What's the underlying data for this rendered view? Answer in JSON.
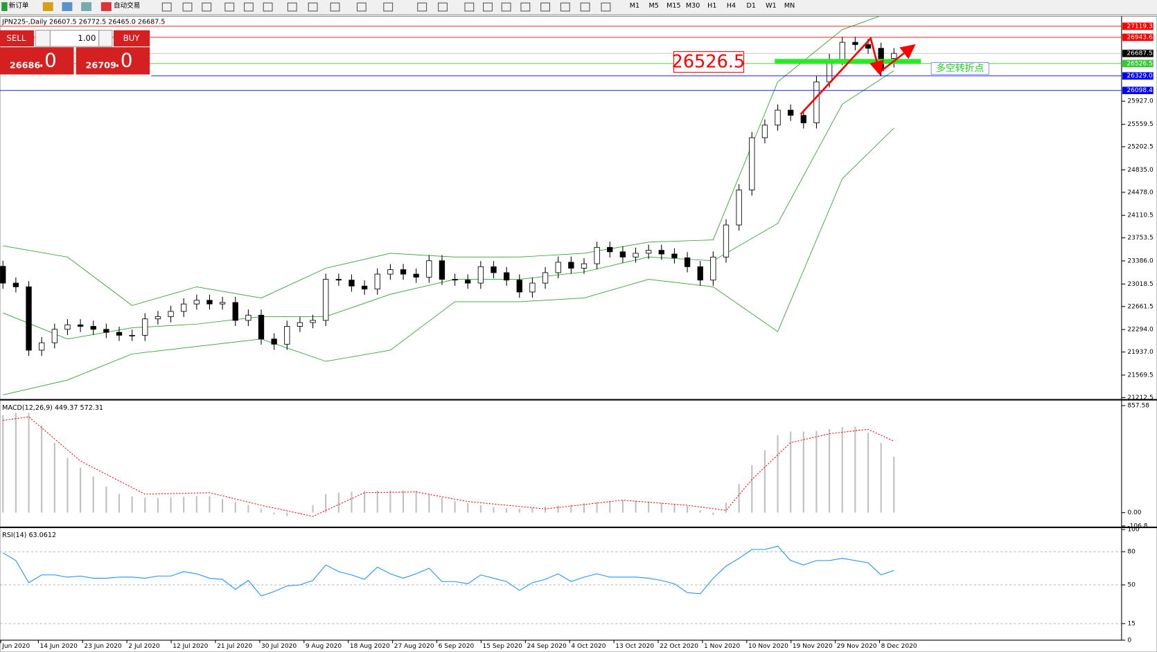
{
  "toolbar": {
    "new_order": "新订单",
    "auto_trade": "自动交易",
    "timeframes": [
      "M1",
      "M5",
      "M15",
      "M30",
      "H1",
      "H4",
      "D1",
      "W1",
      "MN"
    ]
  },
  "trade_panel": {
    "sell": "SELL",
    "buy": "BUY",
    "lots": "1.00",
    "bid_main": "26686",
    "bid_frac": ".0",
    "ask_main": "26709",
    "ask_frac": ".0"
  },
  "chart_data": [
    {
      "type": "candlestick",
      "title": "JPN225-,Daily 26607.5 26772.5 26465.0 26687.5",
      "x_labels": [
        "Jun 2020",
        "14 Jun 2020",
        "23 Jun 2020",
        "2 Jul 2020",
        "12 Jul 2020",
        "21 Jul 2020",
        "30 Jul 2020",
        "9 Aug 2020",
        "18 Aug 2020",
        "27 Aug 2020",
        "6 Sep 2020",
        "15 Sep 2020",
        "24 Sep 2020",
        "4 Oct 2020",
        "13 Oct 2020",
        "22 Oct 2020",
        "1 Nov 2020",
        "10 Nov 2020",
        "19 Nov 2020",
        "29 Nov 2020",
        "8 Dec 2020"
      ],
      "open": [
        23300,
        23033,
        22974,
        21966,
        22084,
        22298,
        22369,
        22345,
        22298,
        22250,
        22203,
        22203,
        22464,
        22500,
        22583,
        22701,
        22760,
        22701,
        22725,
        22440,
        22523,
        22144,
        22061,
        22345,
        22405,
        22440,
        23093,
        23081,
        22986,
        22938,
        23176,
        23247,
        23176,
        23128,
        23389,
        23093,
        23081,
        23033,
        23294,
        23199,
        23081,
        22891,
        23033,
        23199,
        23365,
        23270,
        23341,
        23602,
        23531,
        23448,
        23508,
        23555,
        23496,
        23436,
        23294,
        23081,
        23448,
        23958,
        24516,
        25346,
        25547,
        25785,
        25702,
        25583,
        26235,
        26591,
        26864,
        26828,
        26769,
        26607.5
      ],
      "high": [
        23390,
        23123,
        23064,
        22174,
        22388,
        22459,
        22459,
        22435,
        22388,
        22340,
        22293,
        22554,
        22590,
        22673,
        22791,
        22850,
        22850,
        22815,
        22815,
        22613,
        22613,
        22234,
        22435,
        22495,
        22530,
        23183,
        23183,
        23171,
        23076,
        23266,
        23337,
        23337,
        23266,
        23479,
        23479,
        23183,
        23171,
        23384,
        23384,
        23289,
        23171,
        23123,
        23289,
        23455,
        23455,
        23431,
        23692,
        23692,
        23621,
        23598,
        23645,
        23645,
        23586,
        23526,
        23384,
        23538,
        24048,
        24606,
        25436,
        25637,
        25875,
        25875,
        25792,
        26325,
        26681,
        26954,
        26954,
        26918,
        26859,
        26772.5
      ],
      "low": [
        22943,
        22884,
        21876,
        21876,
        21994,
        22208,
        22255,
        22208,
        22160,
        22113,
        22113,
        22113,
        22374,
        22410,
        22493,
        22611,
        22611,
        22611,
        22350,
        22350,
        22054,
        21971,
        21971,
        22255,
        22315,
        22350,
        22991,
        22896,
        22848,
        22848,
        23086,
        23086,
        23038,
        23038,
        23003,
        22991,
        22943,
        22943,
        23109,
        22991,
        22801,
        22801,
        22943,
        23109,
        23180,
        23180,
        23251,
        23441,
        23358,
        23358,
        23418,
        23406,
        23346,
        23204,
        22991,
        22991,
        23358,
        23868,
        24426,
        25256,
        25457,
        25612,
        25493,
        25493,
        26145,
        26501,
        26738,
        26679,
        26323,
        26465
      ],
      "close": [
        23033,
        22974,
        21966,
        22084,
        22298,
        22369,
        22345,
        22298,
        22250,
        22203,
        22203,
        22464,
        22500,
        22583,
        22701,
        22760,
        22701,
        22725,
        22440,
        22523,
        22144,
        22061,
        22345,
        22405,
        22440,
        23093,
        23081,
        22986,
        22938,
        23176,
        23247,
        23176,
        23128,
        23389,
        23093,
        23081,
        23033,
        23294,
        23199,
        23081,
        22891,
        23033,
        23199,
        23365,
        23270,
        23341,
        23602,
        23531,
        23448,
        23508,
        23555,
        23496,
        23436,
        23294,
        23081,
        23448,
        23958,
        24516,
        25346,
        25547,
        25785,
        25702,
        25583,
        26235,
        26591,
        26864,
        26828,
        26769,
        26413,
        26687.5
      ],
      "up_color": "#ffffff",
      "down_color": "#000000",
      "bollinger": {
        "color": "#2ca02c",
        "x": [
          0,
          5,
          10,
          15,
          20,
          25,
          30,
          35,
          40,
          45,
          50,
          55,
          60,
          65,
          69
        ],
        "upper": [
          23626,
          23448,
          22677,
          22974,
          22796,
          23270,
          23508,
          23448,
          23448,
          23508,
          23685,
          23721,
          26235,
          27066,
          27362
        ],
        "middle": [
          22559,
          22144,
          22322,
          22381,
          22500,
          22500,
          22855,
          23093,
          23093,
          23211,
          23448,
          23389,
          23982,
          25880,
          26413
        ],
        "lower": [
          21254,
          21491,
          21906,
          22025,
          22144,
          21788,
          21966,
          22737,
          22737,
          22796,
          23093,
          22974,
          22262,
          24694,
          25500
        ]
      },
      "ylim": [
        21189,
        27279
      ],
      "yticks": [
        21212.5,
        21569.5,
        {
          "value": 21937,
          "label": "21937.0"
        },
        {
          "value": 22294,
          "label": "22294.0"
        },
        22661.5,
        23018.5,
        {
          "value": 23386,
          "label": "23386.0"
        },
        23753.5,
        24110.5,
        {
          "value": 24478,
          "label": "24478.0"
        },
        {
          "value": 24835,
          "label": "24835.0"
        },
        25202.5,
        25559.5,
        {
          "value": 25927,
          "label": "25927.0"
        }
      ],
      "price_lines": [
        {
          "value": 27119.3,
          "color": "#ff0000"
        },
        {
          "value": 26943.6,
          "color": "#ff0000"
        },
        {
          "value": 26687.5,
          "color": "#000000"
        },
        {
          "value": 26526.5,
          "color": "#33cc33"
        },
        {
          "value": 26329,
          "label": "26329.0",
          "color": "#0000ff"
        },
        {
          "value": 26098.4,
          "color": "#0000ff"
        }
      ],
      "annotations": [
        {
          "text": "26526.5",
          "color": "#ff0000"
        },
        {
          "text": "多空转折点",
          "color": "#22cc22"
        }
      ]
    },
    {
      "type": "macd",
      "title": "MACD(12,26,9) 449.37 572.31",
      "color": "#c0c0c0",
      "values": [
        780,
        800,
        800,
        700,
        560,
        440,
        360,
        290,
        210,
        150,
        130,
        120,
        118,
        122,
        128,
        134,
        132,
        110,
        85,
        62,
        30,
        -15,
        -28,
        -10,
        60,
        148,
        160,
        168,
        175,
        177,
        177,
        177,
        175,
        150,
        120,
        92,
        75,
        60,
        45,
        35,
        30,
        40,
        50,
        57,
        62,
        75,
        85,
        95,
        100,
        98,
        90,
        80,
        68,
        55,
        20,
        -20,
        80,
        230,
        380,
        500,
        620,
        650,
        650,
        655,
        670,
        685,
        690,
        640,
        560,
        449.37
      ],
      "signal": {
        "color": "#ff0000",
        "x": [
          0,
          2,
          6,
          11,
          16,
          20,
          24,
          28,
          32,
          36,
          42,
          48,
          53,
          56,
          58,
          61,
          64,
          67,
          69
        ],
        "values": [
          739,
          768,
          414,
          148,
          160,
          59,
          -30,
          160,
          166,
          89,
          30,
          100,
          59,
          18,
          266,
          561,
          632,
          668,
          572.31
        ]
      },
      "ylim": [
        -112,
        887
      ],
      "yticks": [
        857.58,
        {
          "value": 0,
          "label": "0.00"
        },
        -106.8
      ]
    },
    {
      "type": "line",
      "title": "RSI(14) 63.0612",
      "color": "#1e90ff",
      "values": [
        79,
        72,
        52,
        59,
        59,
        57,
        58,
        56,
        56,
        57,
        57,
        56,
        58,
        58,
        62,
        60,
        56,
        55,
        46,
        54,
        40,
        44,
        49,
        50,
        54,
        68,
        62,
        59,
        55,
        66,
        60,
        56,
        60,
        65,
        53,
        53,
        51,
        59,
        56,
        53,
        45,
        52,
        55,
        60,
        53,
        57,
        60,
        57,
        57,
        57,
        56,
        54,
        51,
        43,
        42,
        56,
        67,
        74,
        82,
        82,
        85,
        72,
        68,
        72,
        72,
        74,
        72,
        70,
        59,
        63.0612
      ],
      "ylim": [
        0,
        100
      ],
      "yticks": [
        100,
        80,
        50,
        15,
        0
      ],
      "levels": [
        80,
        50,
        15
      ]
    }
  ]
}
